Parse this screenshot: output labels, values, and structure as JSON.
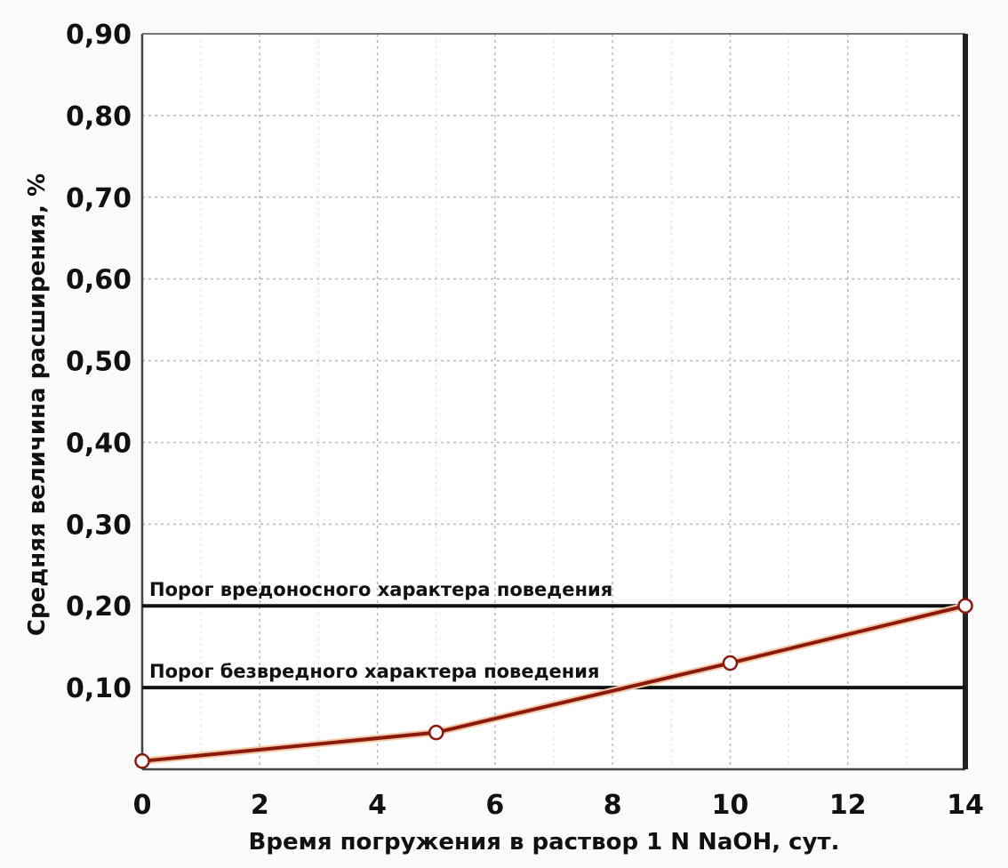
{
  "chart_data": {
    "type": "line",
    "title": "",
    "xlabel": "Время погружения в раствор 1 N NaOH, сут.",
    "ylabel": "Средняя величина расширения, %",
    "xlim": [
      0,
      14
    ],
    "ylim": [
      0,
      0.9
    ],
    "x_ticks": [
      {
        "value": 0,
        "label": "0"
      },
      {
        "value": 2,
        "label": "2"
      },
      {
        "value": 4,
        "label": "4"
      },
      {
        "value": 6,
        "label": "6"
      },
      {
        "value": 8,
        "label": "8"
      },
      {
        "value": 10,
        "label": "10"
      },
      {
        "value": 12,
        "label": "12"
      },
      {
        "value": 14,
        "label": "14"
      }
    ],
    "y_ticks": [
      {
        "value": 0.1,
        "label": "0,10"
      },
      {
        "value": 0.2,
        "label": "0,20"
      },
      {
        "value": 0.3,
        "label": "0,30"
      },
      {
        "value": 0.4,
        "label": "0,40"
      },
      {
        "value": 0.5,
        "label": "0,50"
      },
      {
        "value": 0.6,
        "label": "0,60"
      },
      {
        "value": 0.7,
        "label": "0,70"
      },
      {
        "value": 0.8,
        "label": "0,80"
      },
      {
        "value": 0.9,
        "label": "0,90"
      }
    ],
    "grid": true,
    "series": [
      {
        "x": [
          0,
          5,
          10,
          14
        ],
        "y": [
          0.01,
          0.045,
          0.13,
          0.2
        ]
      }
    ],
    "thresholds": [
      {
        "y": 0.2,
        "label": "Порог вредоносного характера поведения"
      },
      {
        "y": 0.1,
        "label": "Порог безвредного характера поведения"
      }
    ],
    "colors": {
      "line": "#8b1a0e",
      "marker_fill": "#ffffff",
      "marker_stroke": "#8b1a0e",
      "threshold": "#111111",
      "grid": "#b8b8b8",
      "axis": "#444444"
    }
  }
}
